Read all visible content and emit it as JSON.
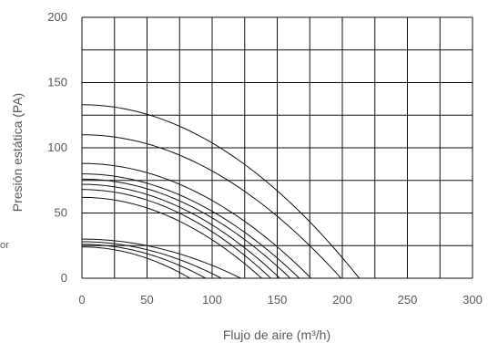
{
  "chart_data": {
    "type": "line",
    "title": "",
    "xlabel": "Flujo de aire (m³/h)",
    "ylabel": "Presión estática (PA)",
    "xlim": [
      0,
      300
    ],
    "ylim": [
      0,
      200
    ],
    "x_ticks": [
      0,
      50,
      100,
      150,
      200,
      250,
      300
    ],
    "y_ticks": [
      0,
      50,
      100,
      150,
      200
    ],
    "x_grid_step": 25,
    "y_grid_step": 25,
    "grid": true,
    "legend": "none",
    "side_text": "or",
    "series": [
      {
        "p0": 133,
        "q_max": 213
      },
      {
        "p0": 110,
        "q_max": 199
      },
      {
        "p0": 88,
        "q_max": 176
      },
      {
        "p0": 80,
        "q_max": 167
      },
      {
        "p0": 76,
        "q_max": 160
      },
      {
        "p0": 72,
        "q_max": 152
      },
      {
        "p0": 68,
        "q_max": 145
      },
      {
        "p0": 62,
        "q_max": 138
      },
      {
        "p0": 30,
        "q_max": 122
      },
      {
        "p0": 28,
        "q_max": 107
      },
      {
        "p0": 26,
        "q_max": 95
      },
      {
        "p0": 24,
        "q_max": 83
      }
    ]
  }
}
